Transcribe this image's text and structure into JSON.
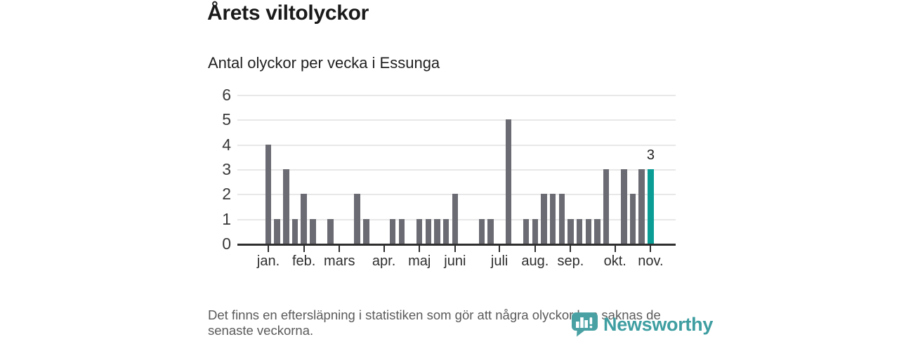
{
  "header": {
    "title": "Årets viltolyckor",
    "subtitle": "Antal olyckor per vecka i Essunga"
  },
  "chart_data": {
    "type": "bar",
    "title": "Årets viltolyckor",
    "subtitle": "Antal olyckor per vecka i Essunga",
    "x_unit": "vecka",
    "x_range": {
      "start_week": 1,
      "end_week": 44
    },
    "values": [
      4,
      1,
      3,
      1,
      2,
      1,
      0,
      1,
      0,
      0,
      2,
      1,
      0,
      0,
      1,
      1,
      0,
      1,
      1,
      1,
      1,
      2,
      0,
      0,
      1,
      1,
      0,
      5,
      0,
      1,
      1,
      2,
      2,
      2,
      1,
      1,
      1,
      1,
      3,
      0,
      3,
      2,
      3,
      3
    ],
    "ylim": [
      0,
      6
    ],
    "y_ticks": [
      0,
      1,
      2,
      3,
      4,
      5,
      6
    ],
    "grid": true,
    "month_ticks": [
      {
        "label": "jan.",
        "week": 1
      },
      {
        "label": "feb.",
        "week": 5
      },
      {
        "label": "mars",
        "week": 9
      },
      {
        "label": "apr.",
        "week": 14
      },
      {
        "label": "maj",
        "week": 18
      },
      {
        "label": "juni",
        "week": 22
      },
      {
        "label": "juli",
        "week": 27
      },
      {
        "label": "aug.",
        "week": 31
      },
      {
        "label": "sep.",
        "week": 35
      },
      {
        "label": "okt.",
        "week": 40
      },
      {
        "label": "nov.",
        "week": 44
      }
    ],
    "highlight": {
      "week": 44,
      "value": 3,
      "label": "3"
    },
    "colors": {
      "bar": "#6b6b74",
      "highlight": "#0a9d96",
      "grid": "#e8e8e8",
      "axis": "#2e2e2e"
    }
  },
  "footer": {
    "note": "Det finns en eftersläpning i statistiken som gör att några olyckor kan saknas de senaste veckorna.",
    "brand": "Newsworthy"
  }
}
